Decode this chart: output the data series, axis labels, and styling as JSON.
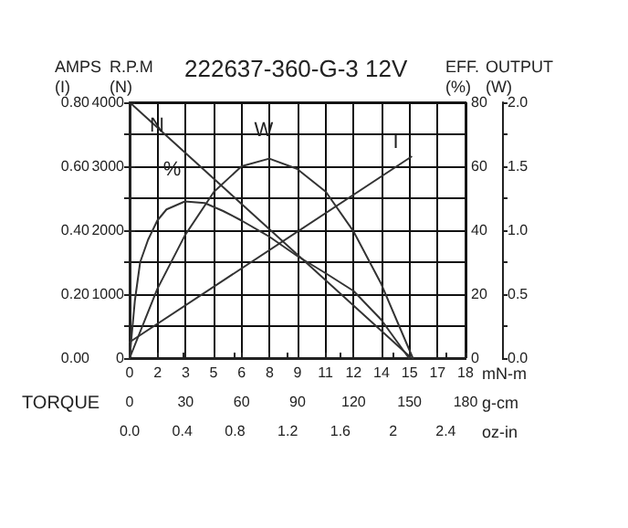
{
  "chart_data": [
    {
      "type": "line",
      "title": "222637-360-G-3 12V",
      "xlabel": "mN-m",
      "x2label": "g-cm",
      "ylabel": "AMPS\n(I)",
      "y2label": "R.P.M\n(N)",
      "annotations": [
        "TORQUE"
      ],
      "xlim": [
        0,
        18
      ],
      "xticks": [
        0,
        {
          "value": 1.5,
          "label": "2"
        },
        3,
        {
          "value": 4.5,
          "label": "5"
        },
        6,
        {
          "value": 7.5,
          "label": "8"
        },
        9,
        {
          "value": 10.5,
          "label": "11"
        },
        12,
        {
          "value": 13.5,
          "label": "14"
        },
        15,
        {
          "value": 16.5,
          "label": "17"
        },
        18
      ],
      "x2lim": [
        0,
        180
      ],
      "x2ticks": [
        0,
        30,
        60,
        90,
        120,
        150,
        180
      ],
      "ylim": [
        0,
        0.8
      ],
      "yticks": [
        {
          "value": 0,
          "label": "0.00"
        },
        {
          "value": 0.1,
          "label": null
        },
        {
          "value": 0.2,
          "label": "0.20"
        },
        {
          "value": 0.3,
          "label": null
        },
        {
          "value": 0.4,
          "label": "0.40"
        },
        {
          "value": 0.5,
          "label": null
        },
        {
          "value": 0.6,
          "label": "0.60"
        },
        {
          "value": 0.7,
          "label": null
        },
        {
          "value": 0.8,
          "label": "0.80"
        }
      ],
      "y2lim": [
        0,
        4000
      ],
      "y2ticks": [
        0,
        {
          "value": 500,
          "label": null
        },
        1000,
        {
          "value": 1500,
          "label": null
        },
        2000,
        {
          "value": 2500,
          "label": null
        },
        3000,
        {
          "value": 3500,
          "label": null
        },
        4000
      ],
      "grid": true,
      "legend": false,
      "marker": "none",
      "line_style": "solid",
      "series": [
        {
          "name": "N",
          "color": "#333333",
          "axis": "y2",
          "x": [
            0,
            15.1
          ],
          "values": [
            4000,
            0
          ]
        },
        {
          "name": "I",
          "color": "#333333",
          "x": [
            0,
            15.1
          ],
          "values": [
            0.05,
            0.63
          ]
        }
      ]
    },
    {
      "type": "line",
      "xlabel": "oz-in",
      "ylabel": "EFF.\n(%)",
      "y2label": "OUTPUT\n(W)",
      "xlim": [
        0,
        2.55
      ],
      "xticks": [
        {
          "value": 0,
          "label": "0.0"
        },
        0.4,
        0.8,
        1.2,
        1.6,
        2.0,
        2.4
      ],
      "ylim": [
        0,
        80
      ],
      "yticks": [
        0,
        20,
        40,
        60,
        80
      ],
      "y2lim": [
        0,
        2.0
      ],
      "y2ticks": [
        {
          "value": 0,
          "label": "0.0"
        },
        {
          "value": 0.25,
          "label": null
        },
        {
          "value": 0.5,
          "label": "0.5"
        },
        {
          "value": 0.75,
          "label": null
        },
        {
          "value": 1.0,
          "label": "1.0"
        },
        {
          "value": 1.25,
          "label": null
        },
        {
          "value": 1.5,
          "label": "1.5"
        },
        {
          "value": 1.75,
          "label": null
        },
        {
          "value": 2.0,
          "label": "2.0"
        }
      ],
      "legend": false,
      "marker": "none",
      "line_style": "solid",
      "series": [
        {
          "name": "W",
          "color": "#333333",
          "axis": "y2",
          "x": [
            0,
            0.21,
            0.42,
            0.64,
            0.85,
            1.06,
            1.27,
            1.49,
            1.7,
            1.91,
            2.15
          ],
          "values": [
            0,
            0.54,
            0.96,
            1.3,
            1.5,
            1.56,
            1.48,
            1.3,
            0.99,
            0.58,
            0
          ]
        },
        {
          "name": "%",
          "color": "#333333",
          "x": [
            0,
            0.04,
            0.08,
            0.14,
            0.21,
            0.28,
            0.42,
            0.57,
            0.71,
            0.85,
            1.06,
            1.27,
            1.49,
            1.7,
            1.91,
            2.12
          ],
          "values": [
            0,
            18,
            30,
            37,
            43,
            46.5,
            49,
            48.5,
            46,
            43,
            38,
            32,
            26.5,
            21,
            12,
            0
          ]
        }
      ]
    }
  ]
}
